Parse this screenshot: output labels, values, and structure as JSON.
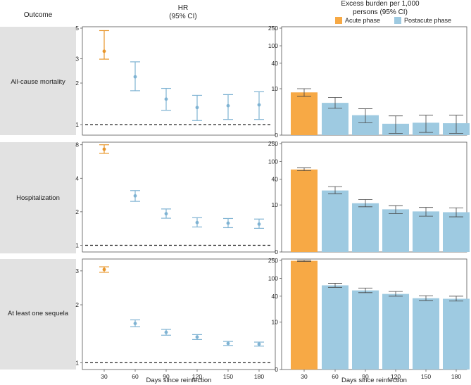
{
  "headers": {
    "outcome": "Outcome",
    "hr_line1": "HR",
    "hr_line2": "(95% CI)",
    "burden_line1": "Excess burden per 1,000",
    "burden_line2": "persons (95% CI)"
  },
  "legend": [
    {
      "label": "Acute phase",
      "color": "#f7a945"
    },
    {
      "label": "Postacute phase",
      "color": "#9ecae1"
    }
  ],
  "colors": {
    "acute": "#f7a945",
    "postacute": "#9ecae1",
    "acute_err": "#e8962b",
    "postacute_err": "#7fb3d3"
  },
  "chart_data": [
    {
      "type": "scatter",
      "panel": "HR",
      "outcome": "All-cause mortality",
      "x": [
        30,
        60,
        90,
        120,
        150,
        180
      ],
      "y": [
        3.4,
        2.22,
        1.53,
        1.33,
        1.37,
        1.39
      ],
      "ci_low": [
        2.98,
        1.76,
        1.27,
        1.07,
        1.09,
        1.09
      ],
      "ci_high": [
        4.8,
        2.85,
        1.83,
        1.63,
        1.65,
        1.73
      ],
      "yticks": [
        1,
        2,
        3,
        5
      ],
      "ylim": [
        0.9,
        5
      ],
      "reference_line": 1
    },
    {
      "type": "bar",
      "panel": "Excess burden",
      "outcome": "All-cause mortality",
      "x": [
        30,
        60,
        90,
        120,
        150,
        180
      ],
      "values": [
        8.1,
        4.3,
        1.8,
        0.8,
        0.9,
        0.85
      ],
      "ci_low": [
        6.4,
        3.0,
        0.9,
        0.1,
        0.15,
        0.1
      ],
      "ci_high": [
        10.0,
        6.0,
        2.9,
        1.7,
        1.8,
        1.8
      ],
      "yticks": [
        0,
        10,
        40,
        100,
        250
      ],
      "ylim": [
        0,
        250
      ]
    },
    {
      "type": "scatter",
      "panel": "HR",
      "outcome": "Hospitalization",
      "x": [
        30,
        60,
        90,
        120,
        150,
        180
      ],
      "y": [
        7.3,
        2.78,
        1.92,
        1.6,
        1.58,
        1.55
      ],
      "ci_low": [
        6.7,
        2.48,
        1.75,
        1.46,
        1.44,
        1.42
      ],
      "ci_high": [
        8.0,
        3.1,
        2.12,
        1.77,
        1.74,
        1.72
      ],
      "yticks": [
        1,
        2,
        4,
        8
      ],
      "ylim": [
        0.95,
        8.2
      ],
      "reference_line": 1
    },
    {
      "type": "bar",
      "panel": "Excess burden",
      "outcome": "Hospitalization",
      "x": [
        30,
        60,
        90,
        120,
        150,
        180
      ],
      "values": [
        66,
        22,
        11,
        7.8,
        6.9,
        6.6
      ],
      "ci_low": [
        62,
        18.5,
        9.0,
        6.1,
        5.2,
        5.0
      ],
      "ci_high": [
        72,
        27,
        13.5,
        9.6,
        8.7,
        8.5
      ],
      "yticks": [
        0,
        10,
        40,
        100,
        250
      ],
      "ylim": [
        0,
        250
      ]
    },
    {
      "type": "scatter",
      "panel": "HR",
      "outcome": "At least one sequela",
      "x": [
        30,
        60,
        90,
        120,
        150,
        180
      ],
      "y": [
        3.05,
        1.6,
        1.44,
        1.36,
        1.26,
        1.25
      ],
      "ci_low": [
        2.95,
        1.54,
        1.39,
        1.32,
        1.23,
        1.22
      ],
      "ci_high": [
        3.15,
        1.67,
        1.49,
        1.4,
        1.29,
        1.28
      ],
      "yticks": [
        1,
        2,
        3
      ],
      "ylim": [
        0.97,
        3.4
      ],
      "reference_line": 1
    },
    {
      "type": "bar",
      "panel": "Excess burden",
      "outcome": "At least one sequela",
      "x": [
        30,
        60,
        90,
        120,
        150,
        180
      ],
      "values": [
        245,
        70,
        54,
        45,
        36,
        35
      ],
      "ci_low": [
        237,
        63,
        48,
        40,
        32,
        31
      ],
      "ci_high": [
        252,
        78,
        61,
        51,
        41,
        40
      ],
      "yticks": [
        0,
        10,
        40,
        100,
        250
      ],
      "ylim": [
        0,
        250
      ]
    }
  ],
  "xlabel": "Days since reinfection",
  "xticklabels": [
    "30",
    "60",
    "90",
    "120",
    "150",
    "180"
  ]
}
